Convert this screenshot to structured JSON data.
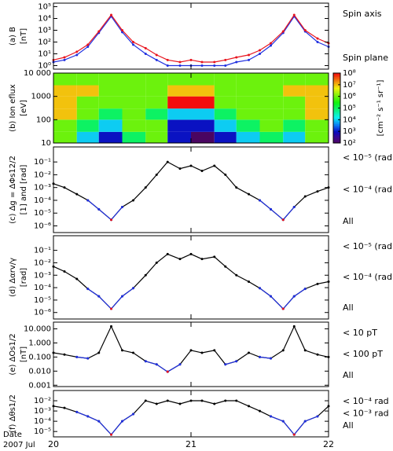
{
  "chart_data": [
    {
      "type": "line",
      "ylabel": "(a) B",
      "yunit": "[nT]",
      "log_y": true,
      "xlim": [
        20,
        22
      ],
      "xticks": [
        20,
        21,
        22
      ],
      "ylim": [
        0.5,
        200000
      ],
      "yticks": [
        {
          "value": 1,
          "label": "10⁰"
        },
        {
          "value": 10,
          "label": "10¹"
        },
        {
          "value": 100,
          "label": "10²"
        },
        {
          "value": 1000,
          "label": "10³"
        },
        {
          "value": 10000,
          "label": "10⁴"
        },
        {
          "value": 100000,
          "label": "10⁵"
        }
      ],
      "x": [
        20,
        20.08,
        20.17,
        20.25,
        20.33,
        20.42,
        20.5,
        20.58,
        20.67,
        20.75,
        20.83,
        20.92,
        21,
        21.08,
        21.17,
        21.25,
        21.33,
        21.42,
        21.5,
        21.58,
        21.67,
        21.75,
        21.83,
        21.92,
        22
      ],
      "series": [
        {
          "name": "Spin axis",
          "color": "#e8141e",
          "values": [
            3,
            5,
            15,
            60,
            800,
            20000,
            1000,
            100,
            30,
            8,
            3,
            2,
            3,
            2,
            2,
            3,
            5,
            8,
            20,
            80,
            800,
            20000,
            1000,
            200,
            80
          ]
        },
        {
          "name": "Spin plane",
          "color": "#2030e0",
          "values": [
            2,
            3,
            8,
            40,
            600,
            15000,
            700,
            60,
            10,
            3,
            1,
            1,
            1,
            1,
            1,
            1,
            2,
            3,
            10,
            50,
            600,
            15000,
            800,
            100,
            40
          ]
        }
      ]
    },
    {
      "type": "heatmap",
      "ylabel": "(b) Ion eflux",
      "yunit": "[eV]",
      "log_y": true,
      "xlim": [
        20,
        22
      ],
      "xticks": [
        20,
        21,
        22
      ],
      "ylim": [
        10,
        10000
      ],
      "yticks": [
        10,
        100,
        1000,
        {
          "value": 10000,
          "label": "10 000"
        }
      ],
      "x_edges": [
        20,
        20.17,
        20.33,
        20.5,
        20.67,
        20.83,
        21,
        21.17,
        21.33,
        21.5,
        21.67,
        21.83,
        22
      ],
      "y_edges": [
        10,
        30,
        100,
        300,
        1000,
        3000,
        10000
      ],
      "values": [
        [
          1000000,
          10000,
          1000,
          100000,
          1000000,
          1000,
          100,
          1000,
          10000,
          100000,
          10000,
          1000000
        ],
        [
          1000000,
          100000,
          10000,
          1000000,
          1000000,
          1000,
          1000,
          10000,
          100000,
          1000000,
          100000,
          1000000
        ],
        [
          10000000,
          1000000,
          100000,
          1000000,
          100000,
          10000,
          10000,
          100000,
          1000000,
          1000000,
          1000000,
          10000000
        ],
        [
          10000000,
          1000000,
          1000000,
          1000000,
          1000000,
          100000000,
          100000000,
          1000000,
          1000000,
          1000000,
          1000000,
          10000000
        ],
        [
          10000000,
          10000000,
          1000000,
          1000000,
          1000000,
          10000000,
          10000000,
          1000000,
          1000000,
          1000000,
          10000000,
          10000000
        ],
        [
          1000000,
          1000000,
          1000000,
          1000000,
          1000000,
          1000000,
          1000000,
          1000000,
          1000000,
          1000000,
          1000000,
          1000000
        ]
      ],
      "clim": [
        100,
        100000000
      ],
      "cticks": [
        {
          "value": 100,
          "label": "10²"
        },
        {
          "value": 1000,
          "label": "10³"
        },
        {
          "value": 10000,
          "label": "10⁴"
        },
        {
          "value": 100000,
          "label": "10⁵"
        },
        {
          "value": 1000000,
          "label": "10⁶"
        },
        {
          "value": 10000000,
          "label": "10⁷"
        },
        {
          "value": 100000000,
          "label": "10⁸"
        }
      ],
      "clabel": "[cm⁻² s⁻¹ sr⁻¹]"
    },
    {
      "type": "line",
      "ylabel": "(c) Δg = ΔΦs12/2",
      "yunit": "[1] and [rad]",
      "log_y": true,
      "xlim": [
        20,
        22
      ],
      "xticks": [
        20,
        21,
        22
      ],
      "ylim": [
        3e-07,
        1.5
      ],
      "yticks": [
        {
          "value": 1e-06,
          "label": "10⁻⁶"
        },
        {
          "value": 1e-05,
          "label": "10⁻⁵"
        },
        {
          "value": 0.0001,
          "label": "10⁻⁴"
        },
        {
          "value": 0.001,
          "label": "10⁻³"
        },
        {
          "value": 0.01,
          "label": "10⁻²"
        },
        {
          "value": 0.1,
          "label": "10⁻¹"
        }
      ],
      "x": [
        20,
        20.08,
        20.17,
        20.25,
        20.33,
        20.42,
        20.5,
        20.58,
        20.67,
        20.75,
        20.83,
        20.92,
        21,
        21.08,
        21.17,
        21.25,
        21.33,
        21.42,
        21.5,
        21.58,
        21.67,
        21.75,
        21.83,
        21.92,
        22
      ],
      "series": [
        {
          "name": "< 10⁻⁵ (rad)",
          "color": "#e8141e",
          "values": [
            null,
            null,
            null,
            null,
            null,
            3e-06,
            null,
            null,
            null,
            null,
            null,
            null,
            null,
            null,
            null,
            null,
            null,
            null,
            null,
            null,
            3e-06,
            null,
            null,
            null,
            null
          ]
        },
        {
          "name": "< 10⁻⁴ (rad)",
          "color": "#2030e0",
          "values": [
            null,
            null,
            null,
            0.0001,
            2e-05,
            3e-06,
            3e-05,
            null,
            null,
            null,
            null,
            null,
            null,
            null,
            null,
            null,
            null,
            null,
            0.0001,
            2e-05,
            3e-06,
            3e-05,
            null,
            null,
            null
          ]
        },
        {
          "name": "All",
          "color": "#000000",
          "values": [
            0.002,
            0.001,
            0.0003,
            0.0001,
            2e-05,
            3e-06,
            3e-05,
            0.0001,
            0.001,
            0.01,
            0.1,
            0.03,
            0.05,
            0.02,
            0.05,
            0.01,
            0.001,
            0.0003,
            0.0001,
            2e-05,
            3e-06,
            3e-05,
            0.0002,
            0.0005,
            0.001
          ]
        }
      ]
    },
    {
      "type": "line",
      "ylabel": "(d) Δαrv/γ",
      "yunit": "[rad]",
      "log_y": true,
      "xlim": [
        20,
        22
      ],
      "xticks": [
        20,
        21,
        22
      ],
      "ylim": [
        3e-07,
        1.5
      ],
      "yticks": [
        {
          "value": 1e-06,
          "label": "10⁻⁶"
        },
        {
          "value": 1e-05,
          "label": "10⁻⁵"
        },
        {
          "value": 0.0001,
          "label": "10⁻⁴"
        },
        {
          "value": 0.001,
          "label": "10⁻³"
        },
        {
          "value": 0.01,
          "label": "10⁻²"
        },
        {
          "value": 0.1,
          "label": "10⁻¹"
        }
      ],
      "x": [
        20,
        20.08,
        20.17,
        20.25,
        20.33,
        20.42,
        20.5,
        20.58,
        20.67,
        20.75,
        20.83,
        20.92,
        21,
        21.08,
        21.17,
        21.25,
        21.33,
        21.42,
        21.5,
        21.58,
        21.67,
        21.75,
        21.83,
        21.92,
        22
      ],
      "series": [
        {
          "name": "< 10⁻⁵ (rad)",
          "color": "#e8141e",
          "values": [
            null,
            null,
            null,
            null,
            null,
            2e-06,
            null,
            null,
            null,
            null,
            null,
            null,
            null,
            null,
            null,
            null,
            null,
            null,
            null,
            null,
            2e-06,
            null,
            null,
            null,
            null
          ]
        },
        {
          "name": "< 10⁻⁴ (rad)",
          "color": "#2030e0",
          "values": [
            null,
            null,
            null,
            8e-05,
            2e-05,
            2e-06,
            2e-05,
            9e-05,
            null,
            null,
            null,
            null,
            null,
            null,
            null,
            null,
            null,
            null,
            9e-05,
            2e-05,
            2e-06,
            2e-05,
            8e-05,
            null,
            null
          ]
        },
        {
          "name": "All",
          "color": "#000000",
          "values": [
            0.005,
            0.002,
            0.0005,
            8e-05,
            2e-05,
            2e-06,
            2e-05,
            9e-05,
            0.001,
            0.01,
            0.05,
            0.02,
            0.05,
            0.02,
            0.03,
            0.005,
            0.001,
            0.0003,
            9e-05,
            2e-05,
            2e-06,
            2e-05,
            8e-05,
            0.0002,
            0.0003
          ]
        }
      ]
    },
    {
      "type": "line",
      "ylabel": "(e) ΔOs1/2",
      "yunit": "[nT]",
      "log_y": true,
      "xlim": [
        20,
        22
      ],
      "xticks": [
        20,
        21,
        22
      ],
      "ylim": [
        0.0008,
        30
      ],
      "yticks": [
        0.001,
        {
          "value": 0.01,
          "label": "0.010"
        },
        {
          "value": 0.1,
          "label": "0.100"
        },
        {
          "value": 1,
          "label": "1.000"
        },
        {
          "value": 10,
          "label": "10.000"
        }
      ],
      "x": [
        20,
        20.08,
        20.17,
        20.25,
        20.33,
        20.42,
        20.5,
        20.58,
        20.67,
        20.75,
        20.83,
        20.92,
        21,
        21.08,
        21.17,
        21.25,
        21.33,
        21.42,
        21.5,
        21.58,
        21.67,
        21.75,
        21.83,
        21.92,
        22
      ],
      "series": [
        {
          "name": "< 10 pT",
          "color": "#e8141e",
          "values": [
            null,
            null,
            null,
            null,
            null,
            null,
            null,
            null,
            null,
            null,
            0.009,
            null,
            null,
            null,
            null,
            null,
            null,
            null,
            null,
            null,
            null,
            null,
            null,
            null,
            null
          ]
        },
        {
          "name": "< 100 pT",
          "color": "#2030e0",
          "values": [
            null,
            null,
            0.1,
            0.08,
            null,
            null,
            null,
            null,
            0.05,
            0.03,
            0.009,
            0.03,
            null,
            null,
            null,
            0.03,
            0.05,
            null,
            0.1,
            0.08,
            null,
            null,
            null,
            null,
            null
          ]
        },
        {
          "name": "All",
          "color": "#000000",
          "values": [
            0.2,
            0.15,
            0.1,
            0.08,
            0.2,
            15,
            0.3,
            0.2,
            0.05,
            0.03,
            0.009,
            0.03,
            0.3,
            0.2,
            0.3,
            0.03,
            0.05,
            0.2,
            0.1,
            0.08,
            0.3,
            15,
            0.3,
            0.15,
            0.1
          ]
        }
      ]
    },
    {
      "type": "line",
      "ylabel": "(f) Δθs1/2",
      "log_y": true,
      "xlim": [
        20,
        22
      ],
      "xticks": [
        20,
        21,
        22
      ],
      "ylim": [
        3e-06,
        0.1
      ],
      "yticks": [
        {
          "value": 1e-05,
          "label": "10⁻⁵"
        },
        {
          "value": 0.0001,
          "label": "10⁻⁴"
        },
        {
          "value": 0.001,
          "label": "10⁻³"
        },
        {
          "value": 0.01,
          "label": "10⁻²"
        }
      ],
      "x": [
        20,
        20.08,
        20.17,
        20.25,
        20.33,
        20.42,
        20.5,
        20.58,
        20.67,
        20.75,
        20.83,
        20.92,
        21,
        21.08,
        21.17,
        21.25,
        21.33,
        21.42,
        21.5,
        21.58,
        21.67,
        21.75,
        21.83,
        21.92,
        22
      ],
      "series": [
        {
          "name": "< 10⁻⁴ rad",
          "color": "#e8141e",
          "values": [
            null,
            null,
            null,
            null,
            null,
            5e-06,
            null,
            null,
            null,
            null,
            null,
            null,
            null,
            null,
            null,
            null,
            null,
            null,
            null,
            null,
            null,
            5e-06,
            null,
            null,
            null
          ]
        },
        {
          "name": "< 10⁻³ rad",
          "color": "#2030e0",
          "values": [
            null,
            null,
            0.0008,
            0.0003,
            0.0001,
            5e-06,
            0.0001,
            0.0005,
            null,
            null,
            null,
            null,
            null,
            null,
            null,
            null,
            null,
            null,
            null,
            0.0003,
            0.0001,
            5e-06,
            0.0001,
            0.0003,
            null
          ]
        },
        {
          "name": "All",
          "color": "#000000",
          "values": [
            0.003,
            0.002,
            0.0008,
            0.0003,
            0.0001,
            5e-06,
            0.0001,
            0.0005,
            0.01,
            0.005,
            0.01,
            0.005,
            0.01,
            0.01,
            0.005,
            0.01,
            0.01,
            0.003,
            0.001,
            0.0003,
            0.0001,
            5e-06,
            0.0001,
            0.0003,
            0.003
          ]
        }
      ]
    }
  ],
  "footer": {
    "date_label": "Date",
    "month": "2007 Jul"
  }
}
